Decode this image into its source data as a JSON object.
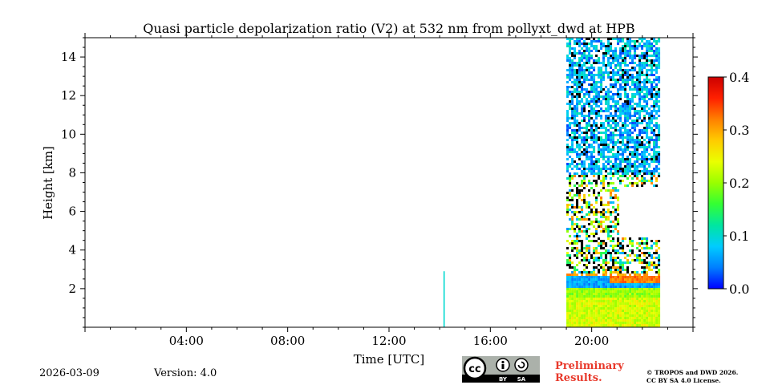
{
  "chart_data": {
    "type": "heatmap",
    "title": "Quasi particle depolarization ratio (V2) at 532 nm from pollyxt_dwd at HPB",
    "xlabel": "Time [UTC]",
    "ylabel": "Height [km]",
    "xlim_hours": [
      0,
      24
    ],
    "ylim_km": [
      0,
      15
    ],
    "x_ticks": [
      {
        "hour": 4,
        "label": "04:00"
      },
      {
        "hour": 8,
        "label": "08:00"
      },
      {
        "hour": 12,
        "label": "12:00"
      },
      {
        "hour": 16,
        "label": "16:00"
      },
      {
        "hour": 20,
        "label": "20:00"
      }
    ],
    "y_ticks": [
      {
        "value": 2,
        "label": "2"
      },
      {
        "value": 4,
        "label": "4"
      },
      {
        "value": 6,
        "label": "6"
      },
      {
        "value": 8,
        "label": "8"
      },
      {
        "value": 10,
        "label": "10"
      },
      {
        "value": 12,
        "label": "12"
      },
      {
        "value": 14,
        "label": "14"
      }
    ],
    "colorbar": {
      "range": [
        0.0,
        0.4
      ],
      "ticks": [
        {
          "value": 0.0,
          "label": "0.0"
        },
        {
          "value": 0.1,
          "label": "0.1"
        },
        {
          "value": 0.2,
          "label": "0.2"
        },
        {
          "value": 0.3,
          "label": "0.3"
        },
        {
          "value": 0.4,
          "label": "0.4"
        }
      ],
      "colors": [
        "#0000ff",
        "#007fff",
        "#00ccff",
        "#00e6a0",
        "#33ff33",
        "#99ff00",
        "#eaff00",
        "#ffcc00",
        "#ff8000",
        "#ff2000",
        "#cc0000"
      ]
    },
    "data_regions": [
      {
        "name": "single-profile",
        "t_start": 14.15,
        "t_end": 14.2,
        "h_start": 0,
        "h_end": 2.9,
        "value": 0.1
      },
      {
        "name": "main-measurement",
        "t_start": 19.0,
        "t_end": 22.7,
        "h_start": 0,
        "h_end": 15
      }
    ],
    "layers": [
      {
        "name": "boundary-layer-lower",
        "h_start": 0.1,
        "h_end": 1.6,
        "value": 0.23
      },
      {
        "name": "boundary-layer-mid",
        "h_start": 1.6,
        "h_end": 2.1,
        "value": 0.2
      },
      {
        "name": "low-depol-layer",
        "h_start": 2.1,
        "h_end": 2.7,
        "value": 0.06
      },
      {
        "name": "high-depol-top",
        "h_start": 2.4,
        "h_end": 2.9,
        "value": 0.32
      },
      {
        "name": "mixed-mid-level",
        "h_start": 2.9,
        "h_end": 8.0,
        "value": 0.2
      },
      {
        "name": "ice-cloud",
        "h_start": 8.0,
        "h_end": 15.0,
        "value": 0.05
      }
    ]
  },
  "footer": {
    "date": "2026-03-09",
    "version": "Version: 4.0",
    "preliminary_line1": "Preliminary",
    "preliminary_line2": "Results.",
    "copyright_line1": "© TROPOS and DWD 2026.",
    "copyright_line2": "CC BY SA 4.0 License.",
    "cc_by": "BY",
    "cc_sa": "SA"
  }
}
